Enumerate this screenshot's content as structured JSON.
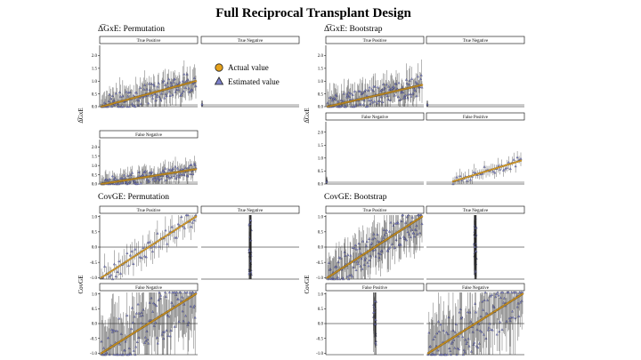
{
  "figure": {
    "title": "Full Reciprocal Transplant Design",
    "legend": {
      "actual_label": "Actual value",
      "estimated_label": "Estimated value",
      "actual_color": "#e6a21c",
      "estimated_color": "#7b7fc9"
    }
  },
  "chart_data": [
    {
      "type": "scatter",
      "title": "Δ̅GxE: Permutation",
      "ylabel": "Δ̅GxE",
      "ylim": [
        0,
        2.4
      ],
      "yticks": [
        0.0,
        0.5,
        1.0,
        1.5,
        2.0
      ],
      "facets": [
        {
          "label": "True Positive",
          "sort_range": [
            0,
            1.0
          ],
          "n": 130,
          "spread": 0.4,
          "marker": "dense"
        },
        {
          "label": "True Negative",
          "sort_range": [
            0,
            0
          ],
          "n": 0,
          "spread": 0.05,
          "marker": "edge"
        },
        {
          "label": "False Negative",
          "sort_range": [
            0,
            0.8
          ],
          "n": 130,
          "spread": 0.35,
          "marker": "dense"
        }
      ]
    },
    {
      "type": "scatter",
      "title": "Δ̅GxE: Bootstrap",
      "ylabel": "Δ̅GxE",
      "ylim": [
        0,
        2.4
      ],
      "yticks": [
        0.0,
        0.5,
        1.0,
        1.5,
        2.0
      ],
      "facets": [
        {
          "label": "True Positive",
          "sort_range": [
            0,
            0.85
          ],
          "n": 140,
          "spread": 0.4,
          "marker": "dense"
        },
        {
          "label": "True Negative",
          "sort_range": [
            0,
            0
          ],
          "n": 0,
          "spread": 0.05,
          "marker": "edge"
        },
        {
          "label": "False Negative",
          "sort_range": [
            0,
            0
          ],
          "n": 0,
          "spread": 0.1,
          "marker": "edge"
        },
        {
          "label": "False Positive",
          "sort_range": [
            0.1,
            0.9
          ],
          "n": 40,
          "spread": 0.2,
          "marker": "sparse"
        }
      ]
    },
    {
      "type": "scatter",
      "title": "CovGE: Permutation",
      "ylabel": "CovGE",
      "ylim": [
        -1.05,
        1.05
      ],
      "yticks": [
        -1.0,
        -0.5,
        0.0,
        0.5,
        1.0
      ],
      "facets": [
        {
          "label": "True Positive",
          "sort_range": [
            -1.0,
            1.0
          ],
          "n": 60,
          "spread": 0.3,
          "marker": "sparse"
        },
        {
          "label": "True Negative",
          "sort_range": [
            0,
            0
          ],
          "n": 30,
          "spread": 0.9,
          "marker": "center"
        },
        {
          "label": "False Negative",
          "sort_range": [
            -1.0,
            1.0
          ],
          "n": 130,
          "spread": 0.9,
          "marker": "dense"
        }
      ]
    },
    {
      "type": "scatter",
      "title": "CovGE: Bootstrap",
      "ylabel": "CovGE",
      "ylim": [
        -1.05,
        1.05
      ],
      "yticks": [
        -1.0,
        -0.5,
        0.0,
        0.5,
        1.0
      ],
      "facets": [
        {
          "label": "True Positive",
          "sort_range": [
            -1.0,
            1.0
          ],
          "n": 140,
          "spread": 0.5,
          "marker": "dense"
        },
        {
          "label": "True Negative",
          "sort_range": [
            0,
            0
          ],
          "n": 30,
          "spread": 0.95,
          "marker": "center"
        },
        {
          "label": "False Positive",
          "sort_range": [
            0,
            0
          ],
          "n": 20,
          "spread": 0.8,
          "marker": "center"
        },
        {
          "label": "False Negative",
          "sort_range": [
            -1.0,
            1.0
          ],
          "n": 130,
          "spread": 0.9,
          "marker": "dense"
        }
      ]
    }
  ]
}
